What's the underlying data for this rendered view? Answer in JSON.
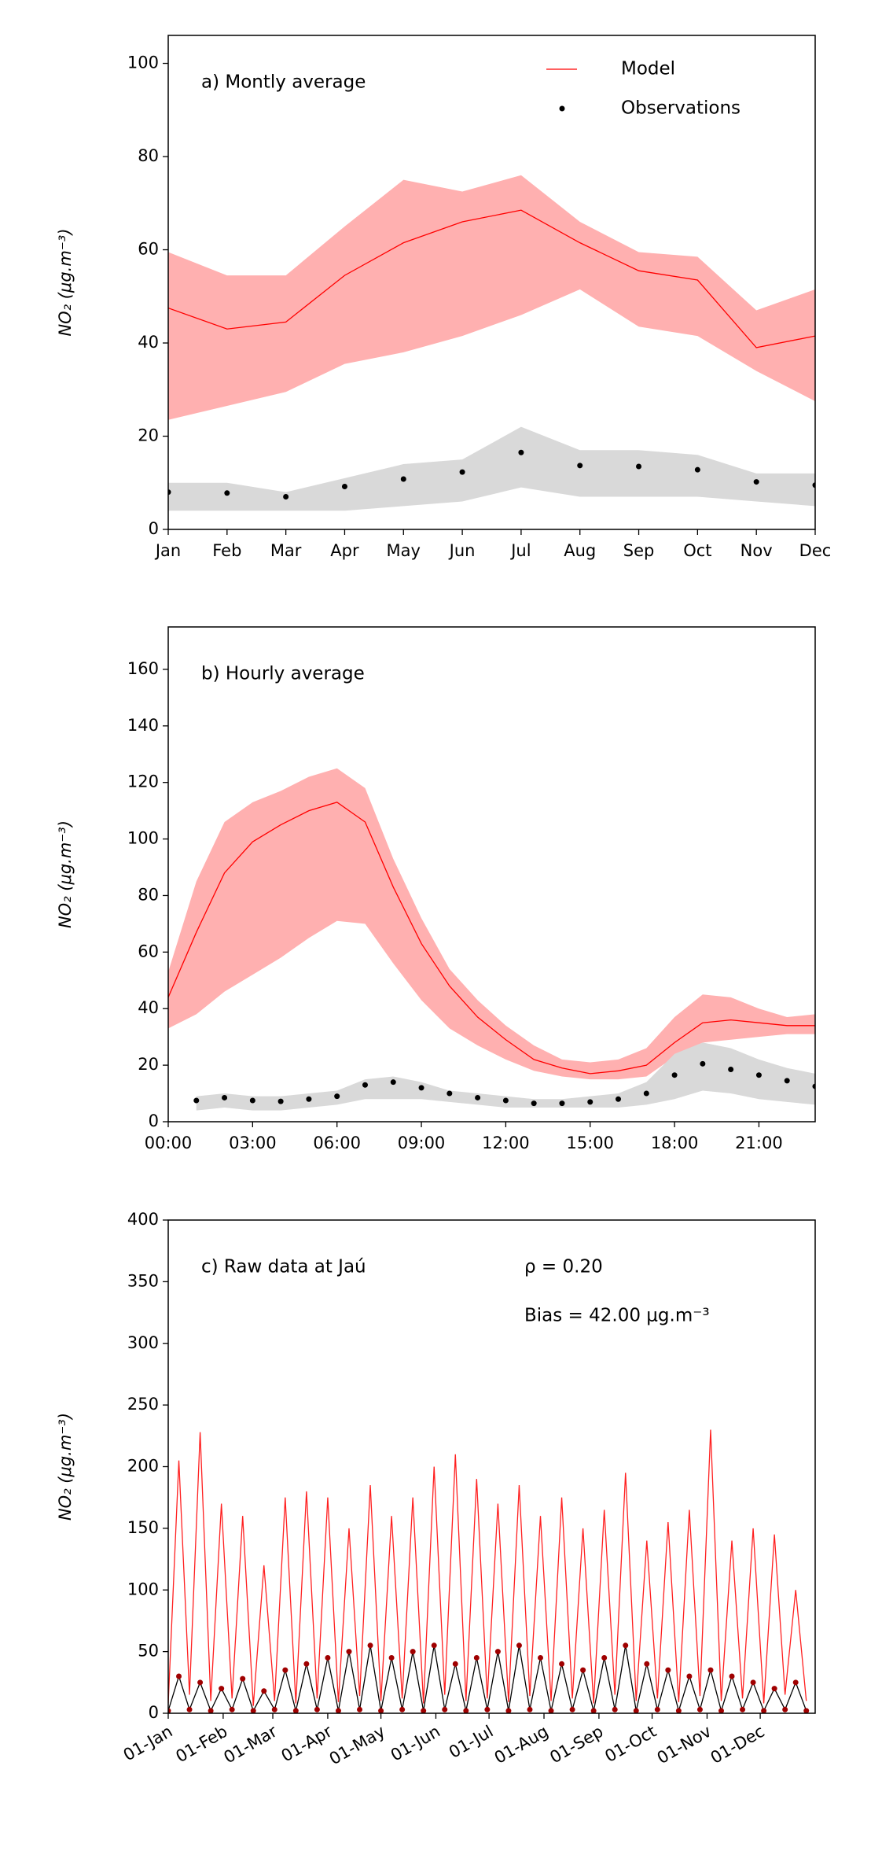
{
  "chart_data": [
    {
      "type": "line",
      "title": "a) Montly average",
      "ylabel": "NO₂ (μg.m⁻³)",
      "legend": "upper right",
      "categories": [
        "Jan",
        "Feb",
        "Mar",
        "Apr",
        "May",
        "Jun",
        "Jul",
        "Aug",
        "Sep",
        "Oct",
        "Nov",
        "Dec"
      ],
      "ylim": [
        0,
        106
      ],
      "yticks": [
        0,
        20,
        40,
        60,
        80,
        100
      ],
      "series": [
        {
          "name": "Model",
          "color": "#ff0000",
          "band_color": "#ffb0b0",
          "style": "line",
          "values": [
            47.5,
            43,
            44.5,
            54.5,
            61.5,
            66,
            68.5,
            61.5,
            55.5,
            53.5,
            39,
            41.5
          ],
          "upper": [
            59.5,
            54.5,
            54.5,
            65,
            75,
            72.5,
            76,
            66,
            59.5,
            58.5,
            47,
            51.5
          ],
          "lower": [
            23.5,
            26.5,
            29.5,
            35.5,
            38,
            41.5,
            46,
            51.5,
            43.5,
            41.5,
            34,
            27.5
          ]
        },
        {
          "name": "Observations",
          "color": "#000000",
          "band_color": "#d9d9d9",
          "style": "markers",
          "values": [
            8,
            7.8,
            7,
            9.2,
            10.8,
            12.3,
            16.5,
            13.7,
            13.5,
            12.8,
            10.2,
            9.5
          ],
          "upper": [
            10,
            10,
            8,
            11,
            14,
            15,
            22,
            17,
            17,
            16,
            12,
            12
          ],
          "lower": [
            4,
            4,
            4,
            4,
            5,
            6,
            9,
            7,
            7,
            7,
            6,
            5
          ]
        }
      ]
    },
    {
      "type": "line",
      "title": "b) Hourly average",
      "ylabel": "NO₂ (μg.m⁻³)",
      "x": [
        0,
        1,
        2,
        3,
        4,
        5,
        6,
        7,
        8,
        9,
        10,
        11,
        12,
        13,
        14,
        15,
        16,
        17,
        18,
        19,
        20,
        21,
        22,
        23
      ],
      "xlim": [
        0,
        23
      ],
      "xticks": [
        {
          "value": 0,
          "label": "00:00"
        },
        {
          "value": 3,
          "label": "03:00"
        },
        {
          "value": 6,
          "label": "06:00"
        },
        {
          "value": 9,
          "label": "09:00"
        },
        {
          "value": 12,
          "label": "12:00"
        },
        {
          "value": 15,
          "label": "15:00"
        },
        {
          "value": 18,
          "label": "18:00"
        },
        {
          "value": 21,
          "label": "21:00"
        }
      ],
      "ylim": [
        0,
        175
      ],
      "yticks": [
        0,
        20,
        40,
        60,
        80,
        100,
        120,
        140,
        160
      ],
      "series": [
        {
          "color": "#ff0000",
          "band_color": "#ffb0b0",
          "style": "line",
          "values": [
            44,
            67,
            88,
            99,
            105,
            110,
            113,
            106,
            83,
            63,
            48,
            37,
            29,
            22,
            19,
            17,
            18,
            20,
            28,
            35,
            36,
            35,
            34,
            34
          ],
          "upper": [
            53,
            85,
            106,
            113,
            117,
            122,
            125,
            118,
            93,
            72,
            54,
            43,
            34,
            27,
            22,
            21,
            22,
            26,
            37,
            45,
            44,
            40,
            37,
            38
          ],
          "lower": [
            33,
            38,
            46,
            52,
            58,
            65,
            71,
            70,
            56,
            43,
            33,
            27,
            22,
            18,
            16,
            15,
            15,
            16,
            23,
            28,
            29,
            30,
            31,
            31
          ]
        },
        {
          "color": "#000000",
          "band_color": "#d9d9d9",
          "style": "markers",
          "values": [
            null,
            7.5,
            8.5,
            7.5,
            7.2,
            8,
            9,
            13,
            14,
            12,
            10,
            8.5,
            7.5,
            6.5,
            6.5,
            7,
            8,
            10,
            16.5,
            20.5,
            18.5,
            16.5,
            14.5,
            12.5
          ],
          "upper": [
            null,
            9,
            10,
            9,
            9,
            10,
            11,
            15,
            16,
            14,
            11,
            10,
            9,
            8,
            8,
            9,
            10,
            14,
            24,
            28,
            26,
            22,
            19,
            17
          ],
          "lower": [
            null,
            4,
            5,
            4,
            4,
            5,
            6,
            8,
            8,
            8,
            7,
            6,
            5,
            5,
            5,
            5,
            5,
            6,
            8,
            11,
            10,
            8,
            7,
            6
          ]
        }
      ]
    },
    {
      "type": "line",
      "title": "c) Raw data at Jaú",
      "ylabel": "NO₂ (μg.m⁻³)",
      "annotations": [
        "ρ = 0.20",
        "Bias = 42.00 μg.m⁻³"
      ],
      "x": [
        0,
        6,
        12,
        18,
        24,
        30,
        36,
        42,
        48,
        54,
        60,
        66,
        72,
        78,
        84,
        90,
        96,
        102,
        108,
        114,
        120,
        126,
        132,
        138,
        144,
        150,
        156,
        162,
        168,
        174,
        180,
        186,
        192,
        198,
        204,
        210,
        216,
        222,
        228,
        234,
        240,
        246,
        252,
        258,
        264,
        270,
        276,
        282,
        288,
        294,
        300,
        306,
        312,
        318,
        324,
        330,
        336,
        342,
        348,
        354,
        360
      ],
      "xlim": [
        0,
        365
      ],
      "xticks": [
        {
          "value": 0,
          "label": "01-Jan"
        },
        {
          "value": 31,
          "label": "01-Feb"
        },
        {
          "value": 59,
          "label": "01-Mar"
        },
        {
          "value": 90,
          "label": "01-Apr"
        },
        {
          "value": 120,
          "label": "01-May"
        },
        {
          "value": 151,
          "label": "01-Jun"
        },
        {
          "value": 181,
          "label": "01-Jul"
        },
        {
          "value": 212,
          "label": "01-Aug"
        },
        {
          "value": 243,
          "label": "01-Sep"
        },
        {
          "value": 273,
          "label": "01-Oct"
        },
        {
          "value": 304,
          "label": "01-Nov"
        },
        {
          "value": 334,
          "label": "01-Dec"
        }
      ],
      "ylim": [
        0,
        400
      ],
      "yticks": [
        0,
        50,
        100,
        150,
        200,
        250,
        300,
        350,
        400
      ],
      "series": [
        {
          "color": "#ff2020",
          "style": "line",
          "values": [
            8,
            205,
            15,
            228,
            10,
            170,
            12,
            160,
            6,
            120,
            10,
            175,
            8,
            180,
            12,
            175,
            9,
            150,
            14,
            185,
            10,
            160,
            12,
            175,
            8,
            200,
            15,
            210,
            10,
            190,
            12,
            170,
            9,
            185,
            14,
            160,
            10,
            175,
            12,
            150,
            8,
            165,
            15,
            195,
            10,
            140,
            12,
            155,
            9,
            165,
            14,
            230,
            10,
            140,
            12,
            150,
            8,
            145,
            15,
            100,
            10
          ]
        },
        {
          "color": "#000000",
          "dot_color": "#a00000",
          "style": "line+markers",
          "values": [
            2,
            30,
            3,
            25,
            2,
            20,
            3,
            28,
            2,
            18,
            3,
            35,
            2,
            40,
            3,
            45,
            2,
            50,
            3,
            55,
            2,
            45,
            3,
            50,
            2,
            55,
            3,
            40,
            2,
            45,
            3,
            50,
            2,
            55,
            3,
            45,
            2,
            40,
            3,
            35,
            2,
            45,
            3,
            55,
            2,
            40,
            3,
            35,
            2,
            30,
            3,
            35,
            2,
            30,
            3,
            25,
            2,
            20,
            3,
            25,
            2
          ]
        }
      ]
    }
  ]
}
